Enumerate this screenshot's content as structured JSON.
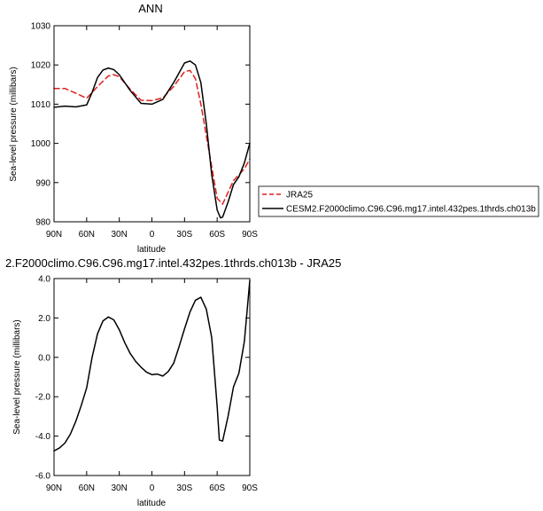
{
  "chart_data": [
    {
      "type": "line",
      "title": "ANN",
      "xlabel": "latitude",
      "ylabel": "Sea-level pressure (millibars)",
      "xlim": [
        -90,
        90
      ],
      "ylim": [
        980,
        1030
      ],
      "xticks": [
        -90,
        -60,
        -30,
        0,
        30,
        60,
        90
      ],
      "xtick_labels": [
        "90N",
        "60N",
        "30N",
        "0",
        "30S",
        "60S",
        "90S"
      ],
      "yticks": [
        980,
        990,
        1000,
        1010,
        1020,
        1030
      ],
      "ytick_labels": [
        "980",
        "990",
        "1000",
        "1010",
        "1020",
        "1030"
      ],
      "legend_position": "right",
      "series": [
        {
          "name": "JRA25",
          "color": "#e02020",
          "dash": "dashed",
          "x": [
            -90,
            -80,
            -70,
            -60,
            -50,
            -40,
            -35,
            -30,
            -20,
            -10,
            0,
            10,
            20,
            30,
            35,
            40,
            45,
            50,
            55,
            60,
            65,
            70,
            75,
            80,
            85,
            90
          ],
          "y": [
            1014,
            1014,
            1012.8,
            1011.5,
            1014.5,
            1017.2,
            1017.5,
            1017,
            1013.8,
            1011,
            1010.9,
            1011.6,
            1014.5,
            1018.3,
            1018.6,
            1016.5,
            1010,
            1002,
            994,
            986,
            984.5,
            987.5,
            990.5,
            992,
            993.5,
            996
          ]
        },
        {
          "name": "CESM2.F2000climo.C96.C96.mg17.intel.432pes.1thrds.ch013b",
          "color": "#000000",
          "dash": "solid",
          "x": [
            -90,
            -80,
            -70,
            -60,
            -55,
            -50,
            -45,
            -40,
            -35,
            -30,
            -20,
            -10,
            0,
            10,
            20,
            30,
            35,
            40,
            45,
            50,
            55,
            60,
            63,
            65,
            70,
            75,
            80,
            85,
            90
          ],
          "y": [
            1009.2,
            1009.5,
            1009.3,
            1009.8,
            1013,
            1016.8,
            1018.7,
            1019.2,
            1018.8,
            1017.5,
            1013.5,
            1010.2,
            1010,
            1011.2,
            1015.5,
            1020.5,
            1021,
            1020,
            1015.5,
            1005,
            992,
            983,
            981,
            981.2,
            985,
            989.5,
            991.5,
            995,
            1000
          ]
        }
      ]
    },
    {
      "type": "line",
      "title": "2.F2000climo.C96.C96.mg17.intel.432pes.1thrds.ch013b - JRA25",
      "xlabel": "latitude",
      "ylabel": "Sea-level pressure (millibars)",
      "xlim": [
        -90,
        90
      ],
      "ylim": [
        -6,
        4
      ],
      "xticks": [
        -90,
        -60,
        -30,
        0,
        30,
        60,
        90
      ],
      "xtick_labels": [
        "90N",
        "60N",
        "30N",
        "0",
        "30S",
        "60S",
        "90S"
      ],
      "yticks": [
        -6,
        -4,
        -2,
        0,
        2,
        4
      ],
      "ytick_labels": [
        "-6.0",
        "-4.0",
        "-2.0",
        "0.0",
        "2.0",
        "4.0"
      ],
      "series": [
        {
          "color": "#000000",
          "dash": "solid",
          "x": [
            -90,
            -85,
            -80,
            -75,
            -70,
            -65,
            -60,
            -55,
            -50,
            -45,
            -40,
            -35,
            -30,
            -25,
            -20,
            -15,
            -10,
            -5,
            0,
            5,
            10,
            15,
            20,
            25,
            30,
            35,
            40,
            45,
            50,
            55,
            60,
            62,
            65,
            70,
            75,
            80,
            85,
            90
          ],
          "y": [
            -4.75,
            -4.6,
            -4.35,
            -3.9,
            -3.25,
            -2.45,
            -1.55,
            0,
            1.2,
            1.85,
            2.05,
            1.9,
            1.4,
            0.75,
            0.2,
            -0.2,
            -0.5,
            -0.75,
            -0.88,
            -0.85,
            -0.95,
            -0.72,
            -0.3,
            0.55,
            1.45,
            2.3,
            2.9,
            3.05,
            2.45,
            1,
            -2.5,
            -4.2,
            -4.25,
            -3,
            -1.5,
            -0.8,
            0.8,
            3.9
          ]
        }
      ]
    }
  ]
}
